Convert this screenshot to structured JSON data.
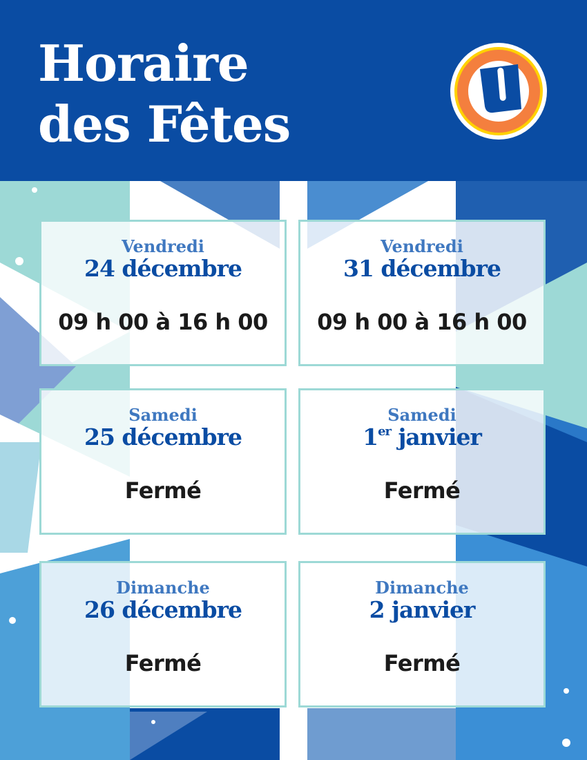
{
  "header": {
    "title_line1": "Horaire",
    "title_line2": "des Fêtes",
    "logo": "U-logo"
  },
  "colors": {
    "brand_blue": "#0a4ca3",
    "accent_blue": "#3f78c0",
    "teal": "#9dd9d6",
    "logo_orange": "#f47f3e",
    "logo_yellow": "#ffd100"
  },
  "cards": [
    {
      "day": "Vendredi",
      "date": "24 décembre",
      "hours": "09 h 00 à 16 h 00"
    },
    {
      "day": "Vendredi",
      "date": "31 décembre",
      "hours": "09 h 00 à 16 h 00"
    },
    {
      "day": "Samedi",
      "date": "25 décembre",
      "hours": "Fermé"
    },
    {
      "day": "Samedi",
      "date_num": "1",
      "date_sup": "er",
      "date_rest": " janvier",
      "hours": "Fermé"
    },
    {
      "day": "Dimanche",
      "date": "26 décembre",
      "hours": "Fermé"
    },
    {
      "day": "Dimanche",
      "date": "2 janvier",
      "hours": "Fermé"
    }
  ]
}
